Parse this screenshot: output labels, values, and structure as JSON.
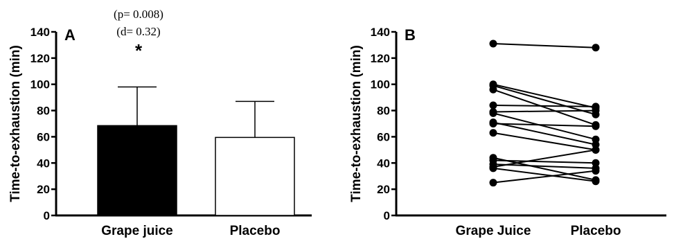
{
  "chart_data": [
    {
      "type": "bar",
      "panel_label": "A",
      "ylabel": "Time-to-exhaustion (min)",
      "ylim": [
        0,
        140
      ],
      "yticks": [
        0,
        20,
        40,
        60,
        80,
        100,
        120,
        140
      ],
      "categories": [
        "Grape juice",
        "Placebo"
      ],
      "values": [
        68.5,
        59.5
      ],
      "error_upper": [
        98,
        87
      ],
      "bar_colors": [
        "#000000",
        "#ffffff"
      ],
      "annotations": [
        "(p= 0.008)",
        "(d= 0.32)",
        "*"
      ]
    },
    {
      "type": "line",
      "panel_label": "B",
      "ylabel": "Time-to-exhaustion (min)",
      "ylim": [
        0,
        140
      ],
      "yticks": [
        0,
        20,
        40,
        60,
        80,
        100,
        120,
        140
      ],
      "categories": [
        "Grape Juice",
        "Placebo"
      ],
      "pairs": [
        [
          131,
          128
        ],
        [
          100,
          82
        ],
        [
          99,
          77
        ],
        [
          96,
          69
        ],
        [
          84,
          83
        ],
        [
          79,
          80
        ],
        [
          78,
          58
        ],
        [
          71,
          54
        ],
        [
          70,
          68
        ],
        [
          63,
          50
        ],
        [
          44,
          27
        ],
        [
          42,
          40
        ],
        [
          39,
          36
        ],
        [
          37,
          50
        ],
        [
          36,
          26
        ],
        [
          25,
          34
        ]
      ]
    }
  ]
}
